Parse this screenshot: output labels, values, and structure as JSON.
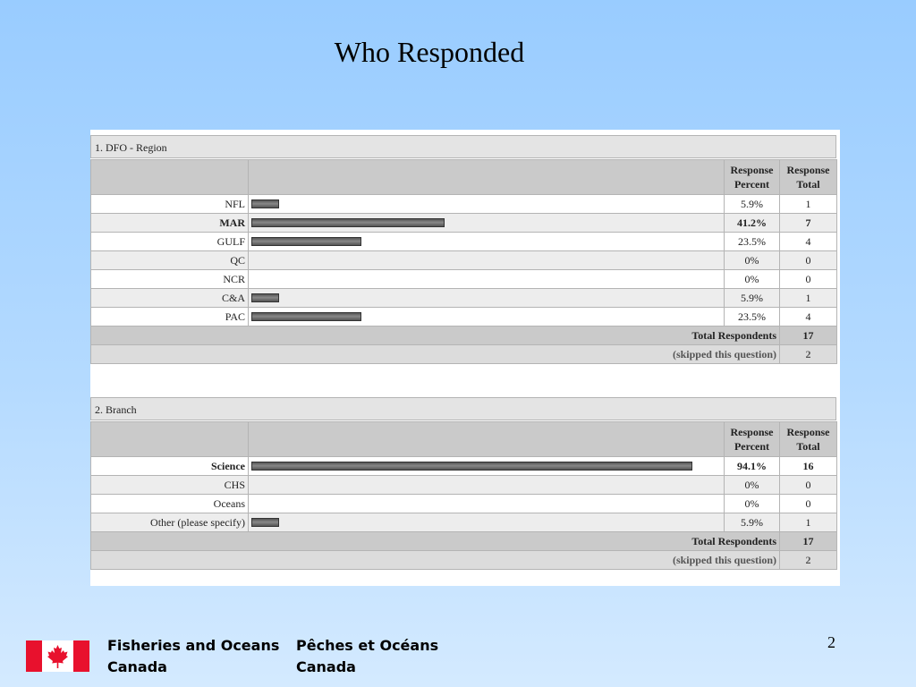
{
  "slide": {
    "title": "Who Responded",
    "page_number": "2"
  },
  "headers": {
    "percent_line1": "Response",
    "percent_line2": "Percent",
    "total_line1": "Response",
    "total_line2": "Total"
  },
  "questions": [
    {
      "title": "1. DFO - Region",
      "rows": [
        {
          "label": "NFL",
          "percent_value": 5.9,
          "percent": "5.9%",
          "total": "1"
        },
        {
          "label": "MAR",
          "percent_value": 41.2,
          "percent": "41.2%",
          "total": "7",
          "bold": true
        },
        {
          "label": "GULF",
          "percent_value": 23.5,
          "percent": "23.5%",
          "total": "4"
        },
        {
          "label": "QC",
          "percent_value": 0,
          "percent": "0%",
          "total": "0"
        },
        {
          "label": "NCR",
          "percent_value": 0,
          "percent": "0%",
          "total": "0"
        },
        {
          "label": "C&A",
          "percent_value": 5.9,
          "percent": "5.9%",
          "total": "1"
        },
        {
          "label": "PAC",
          "percent_value": 23.5,
          "percent": "23.5%",
          "total": "4"
        }
      ],
      "total_label": "Total Respondents",
      "total_value": "17",
      "skipped_label": "(skipped this question)",
      "skipped_value": "2"
    },
    {
      "title": "2. Branch",
      "rows": [
        {
          "label": "Science",
          "percent_value": 94.1,
          "percent": "94.1%",
          "total": "16",
          "bold": true
        },
        {
          "label": "CHS",
          "percent_value": 0,
          "percent": "0%",
          "total": "0"
        },
        {
          "label": "Oceans",
          "percent_value": 0,
          "percent": "0%",
          "total": "0"
        },
        {
          "label": "Other (please specify)",
          "percent_value": 5.9,
          "percent": "5.9%",
          "total": "1"
        }
      ],
      "total_label": "Total Respondents",
      "total_value": "17",
      "skipped_label": "(skipped this question)",
      "skipped_value": "2"
    }
  ],
  "footer": {
    "english_line1": "Fisheries and Oceans",
    "english_line2": "Canada",
    "french_line1": "Pêches et Océans",
    "french_line2": "Canada"
  },
  "colors": {
    "flag_red": "#E8112D",
    "flag_white": "#FFFFFF"
  },
  "icons": {
    "flag": "canada-flag-icon"
  }
}
